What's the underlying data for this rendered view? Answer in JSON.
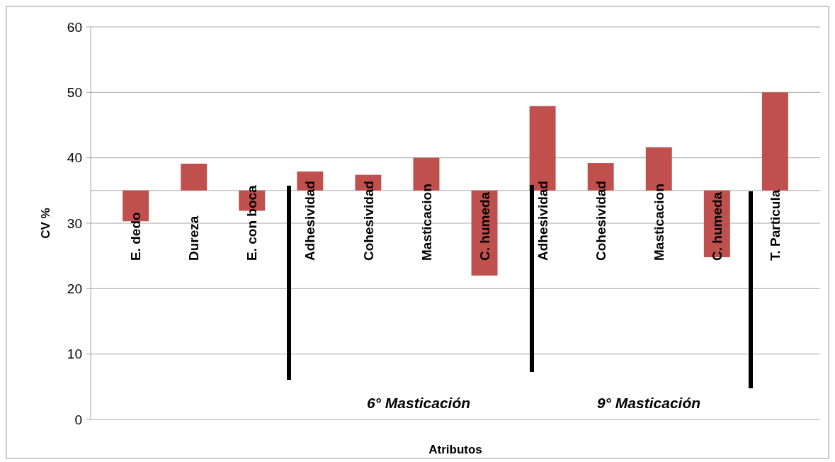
{
  "chart_data": {
    "type": "bar",
    "xlabel": "Atributos",
    "ylabel": "CV %",
    "categories": [
      "E. dedo",
      "Dureza",
      "E. con boca",
      "Adhesividad",
      "Cohesividad",
      "Masticacion",
      "C. humeda",
      "Adhesividad",
      "Cohesividad",
      "Masticacion",
      "C. humeda",
      "T. Particula"
    ],
    "values": [
      -4.7,
      4.1,
      -3.1,
      2.9,
      2.4,
      5.0,
      -13.0,
      12.9,
      4.2,
      6.6,
      -10.2,
      15.0
    ],
    "base": [
      35,
      35,
      35,
      35,
      35,
      35,
      35,
      35,
      35,
      35,
      35,
      35
    ],
    "color": "#c0504d",
    "ylim": [
      0,
      60
    ],
    "yticks": [
      0,
      10,
      20,
      30,
      40,
      50,
      60
    ],
    "grid": "y",
    "annotations": [
      "6° Masticación",
      "9° Masticación"
    ]
  }
}
